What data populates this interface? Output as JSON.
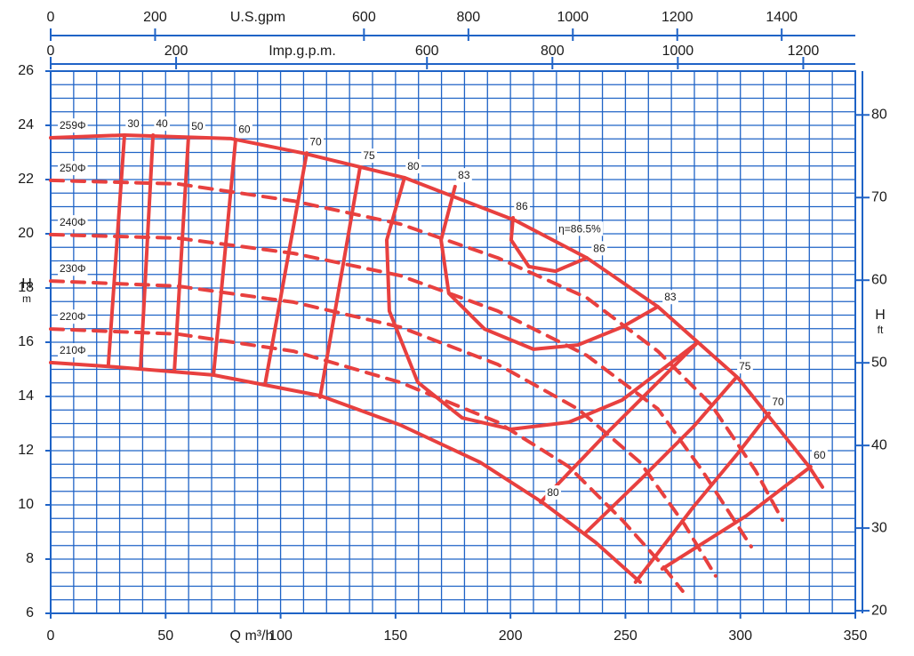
{
  "chart_data": {
    "type": "pump-curve",
    "x_label": "Q m³/h",
    "y_label": "H",
    "y_unit": "m",
    "y2_label": "H",
    "y2_unit": "ft",
    "xlim": [
      0,
      350
    ],
    "xticks": [
      0,
      50,
      100,
      150,
      200,
      250,
      300,
      350
    ],
    "ylim": [
      6,
      26
    ],
    "yticks": [
      6,
      8,
      10,
      12,
      14,
      16,
      18,
      20,
      22,
      24,
      26
    ],
    "y2lim": [
      19.685,
      85.302
    ],
    "y2ticks": [
      20,
      30,
      40,
      50,
      60,
      70,
      80
    ],
    "top_axes": [
      {
        "label": "U.S.gpm",
        "xlim": [
          0,
          1541
        ],
        "xticks": [
          0,
          200,
          600,
          800,
          1000,
          1200,
          1400
        ]
      },
      {
        "label": "Imp.g.p.m.",
        "xlim": [
          0,
          1283
        ],
        "xticks": [
          0,
          200,
          600,
          800,
          1000,
          1200
        ]
      }
    ],
    "grid": {
      "x_step": 10,
      "y_step": 0.5,
      "color": "#1f63c6"
    },
    "color": "#e8403f",
    "series": [
      {
        "name": "259Φ",
        "style": "solid",
        "q": [
          0,
          32.1,
          78.5,
          109.4,
          153.9,
          202.2,
          233.2,
          264.1,
          298.9,
          329.9,
          335.7
        ],
        "h": [
          23.54,
          23.64,
          23.51,
          22.98,
          22.07,
          20.49,
          19.11,
          17.31,
          14.69,
          11.41,
          10.66
        ]
      },
      {
        "name": "250Φ",
        "style": "dashed",
        "q": [
          0,
          55.3,
          105.6,
          152.0,
          194.5,
          233.2,
          264.1,
          287.3,
          306.7,
          318.3
        ],
        "h": [
          21.97,
          21.84,
          21.21,
          20.36,
          19.11,
          17.64,
          15.67,
          13.7,
          11.25,
          9.44
        ]
      },
      {
        "name": "240Φ",
        "style": "dashed",
        "q": [
          0,
          55.3,
          105.6,
          152.0,
          194.5,
          233.2,
          264.1,
          283.5,
          304.7
        ],
        "h": [
          19.97,
          19.84,
          19.28,
          18.46,
          17.15,
          15.51,
          13.54,
          11.25,
          8.46
        ]
      },
      {
        "name": "230Φ",
        "style": "dashed",
        "q": [
          0,
          55.3,
          105.6,
          152.0,
          194.5,
          229.3,
          256.4,
          275.7,
          289.2
        ],
        "h": [
          18.26,
          18.07,
          17.48,
          16.56,
          15.18,
          13.54,
          11.57,
          9.28,
          7.38
        ]
      },
      {
        "name": "220Φ",
        "style": "dashed",
        "q": [
          0,
          55.3,
          105.6,
          152.0,
          194.5,
          225.4,
          248.6,
          264.1,
          274.9
        ],
        "h": [
          16.49,
          16.3,
          15.67,
          14.52,
          13.05,
          11.41,
          9.44,
          7.97,
          6.82
        ]
      },
      {
        "name": "210Φ",
        "style": "solid",
        "q": [
          0,
          24.4,
          70.8,
          117.2,
          152.0,
          186.8,
          213.8,
          237.0,
          256.4
        ],
        "h": [
          15.25,
          15.11,
          14.79,
          14.03,
          12.95,
          11.57,
          10.1,
          8.62,
          7.15
        ]
      }
    ],
    "efficiency": [
      {
        "label": "30",
        "q": [
          32.1,
          25.1
        ],
        "h": [
          23.64,
          15.18
        ]
      },
      {
        "label": "40",
        "q": [
          44.5,
          39.1
        ],
        "h": [
          23.64,
          15.05
        ]
      },
      {
        "label": "50",
        "q": [
          59.9,
          53.8
        ],
        "h": [
          23.54,
          14.92
        ]
      },
      {
        "label": "60",
        "q": [
          80.4,
          70.8
        ],
        "h": [
          23.44,
          14.79
        ]
      },
      {
        "label": "70",
        "q": [
          111.4,
          93.2
        ],
        "h": [
          22.98,
          14.43
        ]
      },
      {
        "label": "75",
        "q": [
          134.6,
          117.2
        ],
        "h": [
          22.46,
          13.97
        ]
      },
      {
        "label": "80",
        "end_label": "80",
        "q": [
          153.9,
          146.2,
          147.3,
          159.7,
          179.0,
          200.3,
          225.4,
          248.6,
          281.5,
          null,
          281.5,
          264.1,
          240.9,
          213.1
        ],
        "h": [
          22.07,
          19.77,
          17.15,
          14.52,
          13.21,
          12.79,
          13.05,
          13.87,
          16.0,
          null,
          16.0,
          14.52,
          12.56,
          10.1
        ]
      },
      {
        "label": "83",
        "end_label": "83",
        "q": [
          175.9,
          169.8,
          173.2,
          188.7,
          210.0,
          229.3,
          248.6,
          264.1
        ],
        "h": [
          21.74,
          19.77,
          17.8,
          16.49,
          15.74,
          15.9,
          16.56,
          17.31
        ]
      },
      {
        "label": "86",
        "end_label": "86",
        "q": [
          201.1,
          200.3,
          208.0,
          219.6,
          233.2
        ],
        "h": [
          20.59,
          19.77,
          18.79,
          18.62,
          19.11
        ]
      },
      {
        "label": "75",
        "q": [
          298.1,
          279.6,
          256.4,
          232.4
        ],
        "h": [
          14.69,
          12.89,
          10.92,
          8.95
        ]
      },
      {
        "label": "70",
        "q": [
          312.5,
          298.9,
          279.6,
          254.4
        ],
        "h": [
          13.38,
          11.9,
          9.93,
          7.15
        ]
      },
      {
        "label": "60",
        "q": [
          330.6,
          302.8,
          266.0
        ],
        "h": [
          11.41,
          9.61,
          7.64
        ]
      }
    ],
    "annotation": "η=86.5%"
  }
}
